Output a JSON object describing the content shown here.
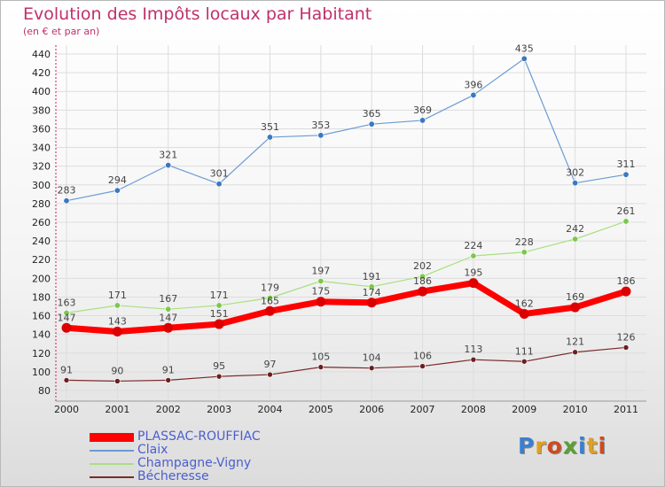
{
  "header": {
    "title": "Evolution des Impôts locaux par Habitant",
    "subtitle": "(en € et par an)"
  },
  "logo": {
    "text": "Proxiti"
  },
  "chart_data": {
    "type": "line",
    "title": "Evolution des Impôts locaux par Habitant",
    "subtitle": "(en € et par an)",
    "xlabel": "",
    "ylabel": "",
    "ylim": [
      80,
      440
    ],
    "yticks": [
      80,
      100,
      120,
      140,
      160,
      180,
      200,
      220,
      240,
      260,
      280,
      300,
      320,
      340,
      360,
      380,
      400,
      420,
      440
    ],
    "categories": [
      "2000",
      "2001",
      "2002",
      "2003",
      "2004",
      "2005",
      "2006",
      "2007",
      "2008",
      "2009",
      "2010",
      "2011"
    ],
    "grid": true,
    "legend_position": "bottom-left",
    "series": [
      {
        "name": "PLASSAC-ROUFFIAC",
        "color": "#ff0000",
        "marker": "#dd0000",
        "values": [
          147,
          143,
          147,
          151,
          165,
          175,
          174,
          186,
          195,
          162,
          169,
          186
        ]
      },
      {
        "name": "Claix",
        "color": "#6a9bd4",
        "marker": "#3a78c2",
        "values": [
          283,
          294,
          321,
          301,
          351,
          353,
          365,
          369,
          396,
          435,
          302,
          311
        ]
      },
      {
        "name": "Champagne-Vigny",
        "color": "#a8e080",
        "marker": "#7cc84a",
        "values": [
          163,
          171,
          167,
          171,
          179,
          197,
          191,
          202,
          224,
          228,
          242,
          261
        ]
      },
      {
        "name": "Bécheresse",
        "color": "#7a2a2a",
        "marker": "#6a1f1f",
        "values": [
          91,
          90,
          91,
          95,
          97,
          105,
          104,
          106,
          113,
          111,
          121,
          126
        ]
      }
    ]
  }
}
